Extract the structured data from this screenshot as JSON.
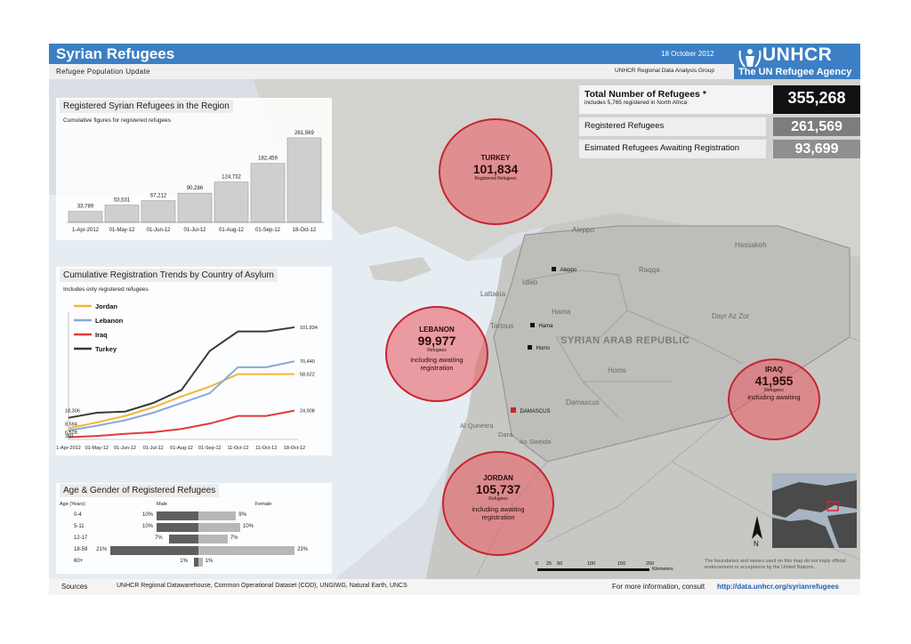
{
  "header": {
    "title": "Syrian Refugees",
    "date": "18 October 2012",
    "subtitle": "Refugee Population Update",
    "unit": "UNHCR Regional Data Analysis Group",
    "logo_word": "UNHCR",
    "logo_tagline": "The UN Refugee Agency"
  },
  "totals": {
    "total_label": "Total Number of Refugees *",
    "total_note": "includes 5,765 registered in North Africa",
    "total_value": "355,268",
    "registered_label": "Registered Refugees",
    "registered_value": "261,569",
    "awaiting_label": "Esimated Refugees Awaiting Registration",
    "awaiting_value": "93,699"
  },
  "cumulative_panel": {
    "title": "Registered Syrian Refugees in the Region",
    "subtitle": "Cumulative figures for registered refugees"
  },
  "trends_panel": {
    "title": "Cumulative Registration Trends by Country of Asylum",
    "subtitle": "Includes only registered refugees"
  },
  "age_panel": {
    "title": "Age & Gender of Registered Refugees",
    "age_header": "Age (Years)",
    "male_header": "Male",
    "female_header": "Female",
    "rows": [
      {
        "age": "0-4",
        "male": "10%",
        "female": "9%",
        "male_v": 10,
        "female_v": 9
      },
      {
        "age": "5-11",
        "male": "10%",
        "female": "10%",
        "male_v": 10,
        "female_v": 10
      },
      {
        "age": "12-17",
        "male": "7%",
        "female": "7%",
        "male_v": 7,
        "female_v": 7
      },
      {
        "age": "18-59",
        "male": "21%",
        "female": "23%",
        "male_v": 21,
        "female_v": 23
      },
      {
        "age": "60+",
        "male": "1%",
        "female": "1%",
        "male_v": 1,
        "female_v": 1
      }
    ]
  },
  "chart_data": [
    {
      "type": "bar",
      "categories": [
        "1-Apr-2012",
        "01-May-12",
        "01-Jun-12",
        "01-Jul-12",
        "01-Aug-12",
        "01-Sep-12",
        "18-Oct-12"
      ],
      "values": [
        33789,
        53531,
        67212,
        90286,
        124732,
        182459,
        261569
      ],
      "value_labels": [
        "33,789",
        "53,531",
        "67,212",
        "90,286",
        "124,732",
        "182,459",
        "261,569"
      ],
      "title": "Registered Syrian Refugees in the Region",
      "subtitle": "Cumulative figures for registered refugees"
    },
    {
      "type": "line",
      "categories": [
        "1-Apr-2012",
        "01-May-12",
        "01-Jun-12",
        "01-Jul-12",
        "01-Aug-12",
        "01-Sep-12",
        "11-Oct-12",
        "11-Oct-12",
        "18-Oct-12"
      ],
      "series": [
        {
          "name": "Jordan",
          "color": "#f2b632",
          "values": [
            8594,
            14000,
            20000,
            28000,
            38000,
            47000,
            58622,
            58622,
            58622
          ]
        },
        {
          "name": "Lebanon",
          "color": "#86a9d9",
          "values": [
            6528,
            11000,
            16000,
            23000,
            32000,
            41000,
            65000,
            65000,
            70440
          ]
        },
        {
          "name": "Iraq",
          "color": "#e23a3a",
          "values": [
            360,
            1500,
            3500,
            5000,
            8000,
            13000,
            20000,
            20000,
            24908
          ]
        },
        {
          "name": "Turkey",
          "color": "#3a3a3a",
          "values": [
            18306,
            23000,
            24000,
            32000,
            44000,
            80000,
            98000,
            98000,
            101834
          ]
        }
      ],
      "start_labels": [
        "18,306",
        "8,594",
        "6,528",
        "360"
      ],
      "end_labels": [
        "101,834",
        "70,440",
        "58,622",
        "24,908"
      ],
      "title": "Cumulative Registration Trends by Country of Asylum",
      "subtitle": "Includes only registered refugees"
    }
  ],
  "bubbles": {
    "turkey": {
      "name": "TURKEY",
      "value": "101,834",
      "sub": "Registered Refugees"
    },
    "lebanon": {
      "name": "LEBANON",
      "value": "99,977",
      "sub": "Refugees",
      "note": "including awaiting registration"
    },
    "iraq": {
      "name": "IRAQ",
      "value": "41,955",
      "sub": "Refugees",
      "note": "including awaiting"
    },
    "jordan": {
      "name": "JORDAN",
      "value": "105,737",
      "sub": "Refugees",
      "note": "including awaiting registration"
    }
  },
  "map_labels": {
    "country": "SYRIAN ARAB REPUBLIC",
    "aleppo_region": "Aleppo",
    "aleppo_city": "Aleppo",
    "raqqa": "Raqqa",
    "hassakeh": "Hassakeh",
    "idleb": "Idleb",
    "lattakia": "Lattakia",
    "hama_region": "Hama",
    "hama_city": "Hama",
    "tartous": "Tartous",
    "homs_city": "Homs",
    "homs_region": "Homs",
    "dayr": "Dayr Az Zor",
    "damascus_city": "DAMASCUS",
    "damascus_region": "Damascus",
    "quneitra": "Al Quneitra",
    "dara": "Dara",
    "sweida": "As Sweida"
  },
  "scale": {
    "ticks": [
      "0",
      "25",
      "50",
      "100",
      "150",
      "200"
    ],
    "unit": "Kilometers"
  },
  "north_label": "N",
  "disclaimer": "The boundaries and names used on this map do not imply official endorsement or acceptance by the United Nations.",
  "footer": {
    "sources_label": "Sources",
    "sources_text": "UNHCR Regional Datawarehouse, Common Operational Dataset (COD), UNGIWG, Natural Earth, UNCS",
    "more_label": "For more information, consult",
    "url": "http://data.unhcr.org/syrianrefugees"
  },
  "colors": {
    "header_blue": "#3d7fc4",
    "bubble_red": "#e35a62",
    "dark": "#111111",
    "grey_value": "#8a8a8a"
  }
}
